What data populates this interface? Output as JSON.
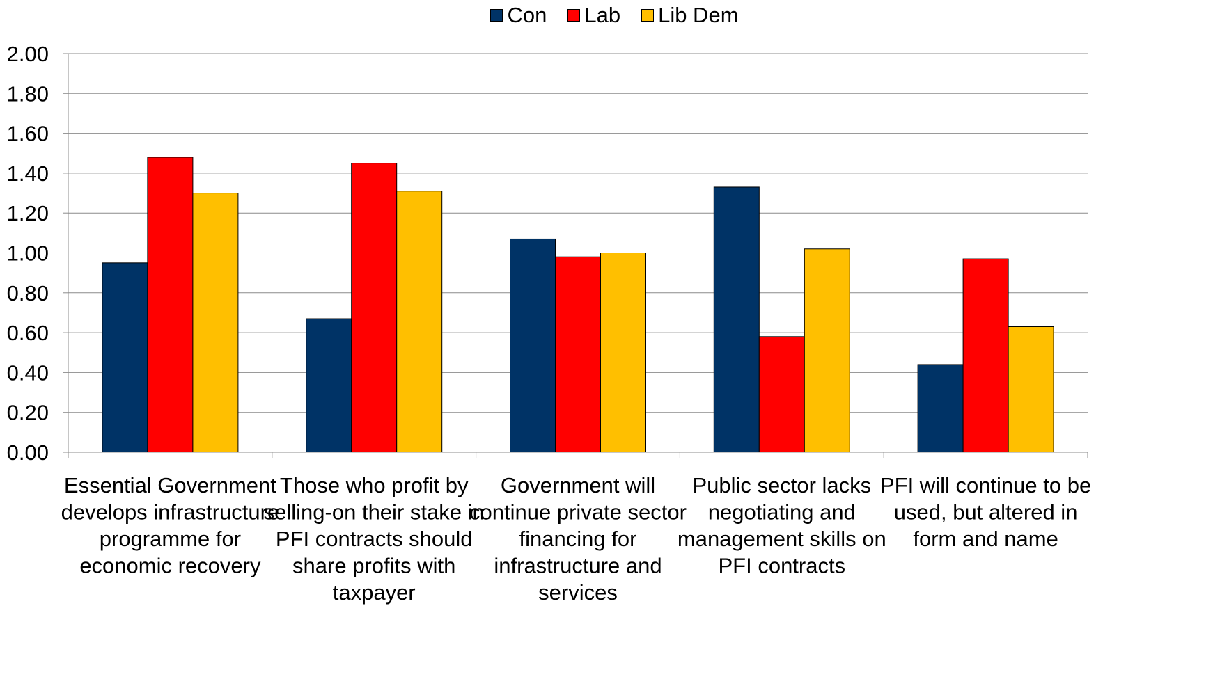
{
  "chart_data": {
    "type": "bar",
    "categories": [
      [
        "Essential Government",
        "develops  infrastructure",
        "programme for",
        "economic recovery"
      ],
      [
        "Those who profit by",
        "selling-on their stake in",
        "PFI contracts should",
        "share profits with",
        "taxpayer"
      ],
      [
        "Government will",
        "continue private sector",
        "financing for",
        "infrastructure and",
        "services"
      ],
      [
        "Public sector lacks",
        "negotiating and",
        "management skills on",
        "PFI contracts"
      ],
      [
        "PFI will continue to be",
        "used, but altered in",
        "form and name"
      ]
    ],
    "series": [
      {
        "name": "Con",
        "color": "#003366",
        "values": [
          0.95,
          0.67,
          1.07,
          1.33,
          0.44
        ]
      },
      {
        "name": "Lab",
        "color": "#FF0000",
        "values": [
          1.48,
          1.45,
          0.98,
          0.58,
          0.97
        ]
      },
      {
        "name": "Lib Dem",
        "color": "#FFBF00",
        "values": [
          1.3,
          1.31,
          1.0,
          1.02,
          0.63
        ]
      }
    ],
    "yticks": [
      "0.00",
      "0.20",
      "0.40",
      "0.60",
      "0.80",
      "1.00",
      "1.20",
      "1.40",
      "1.60",
      "1.80",
      "2.00"
    ],
    "ylim": [
      0,
      2
    ],
    "grid": true,
    "legend_position": "top-center"
  }
}
